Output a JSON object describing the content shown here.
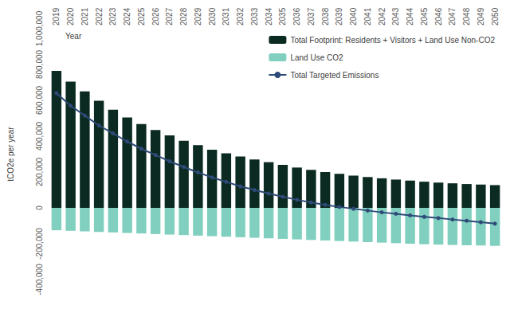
{
  "chart_data": {
    "type": "bar",
    "x_label": "Year",
    "y_label": "tCO2e per year",
    "categories": [
      "2019",
      "2020",
      "2021",
      "2022",
      "2023",
      "2024",
      "2025",
      "2026",
      "2027",
      "2028",
      "2029",
      "2030",
      "2031",
      "2032",
      "2033",
      "2034",
      "2035",
      "2036",
      "2037",
      "2038",
      "2039",
      "2040",
      "2041",
      "2042",
      "2043",
      "2044",
      "2045",
      "2046",
      "2047",
      "2048",
      "2049",
      "2050"
    ],
    "series": [
      {
        "name": "Total Footprint: Residents + Visitors + Land Use Non-CO2",
        "type": "bar",
        "color": "#0b2a21",
        "values": [
          765000,
          705000,
          650000,
          598000,
          548000,
          505000,
          468000,
          435000,
          405000,
          375000,
          350000,
          325000,
          305000,
          287000,
          270000,
          255000,
          240000,
          225000,
          212000,
          200000,
          190000,
          180000,
          172000,
          165000,
          158000,
          152000,
          146000,
          141000,
          137000,
          133000,
          130000,
          127000
        ]
      },
      {
        "name": "Land Use CO2",
        "type": "bar",
        "color": "#80cfbf",
        "values": [
          -125000,
          -128000,
          -131000,
          -134000,
          -137000,
          -140000,
          -143000,
          -146000,
          -149000,
          -152000,
          -155000,
          -158000,
          -161000,
          -164000,
          -167000,
          -170000,
          -173000,
          -176000,
          -179000,
          -182000,
          -185000,
          -188000,
          -191000,
          -194000,
          -197000,
          -200000,
          -203000,
          -205000,
          -207000,
          -209000,
          -210000,
          -212000
        ]
      },
      {
        "name": "Total Targeted Emissions",
        "type": "line",
        "color": "#2e4a78",
        "marker": "circle",
        "values": [
          640000,
          570000,
          515000,
          460000,
          415000,
          370000,
          330000,
          295000,
          260000,
          228000,
          198000,
          170000,
          145000,
          120000,
          100000,
          80000,
          62000,
          45000,
          30000,
          17000,
          5000,
          -5000,
          -15000,
          -25000,
          -33000,
          -42000,
          -50000,
          -57000,
          -65000,
          -72000,
          -80000,
          -88000
        ]
      }
    ],
    "stacked": true,
    "ylim": [
      -400000,
      1000000
    ],
    "yticks": [
      {
        "value": -400000,
        "label": "-400,000"
      },
      {
        "value": -200000,
        "label": "-200,000"
      },
      0,
      {
        "value": 200000,
        "label": "200,000"
      },
      {
        "value": 400000,
        "label": "400,000"
      },
      {
        "value": 600000,
        "label": "600,000"
      },
      {
        "value": 800000,
        "label": "800,000"
      },
      {
        "value": 1000000,
        "label": "1,000,000"
      }
    ],
    "grid": false,
    "legend": "upper right"
  }
}
